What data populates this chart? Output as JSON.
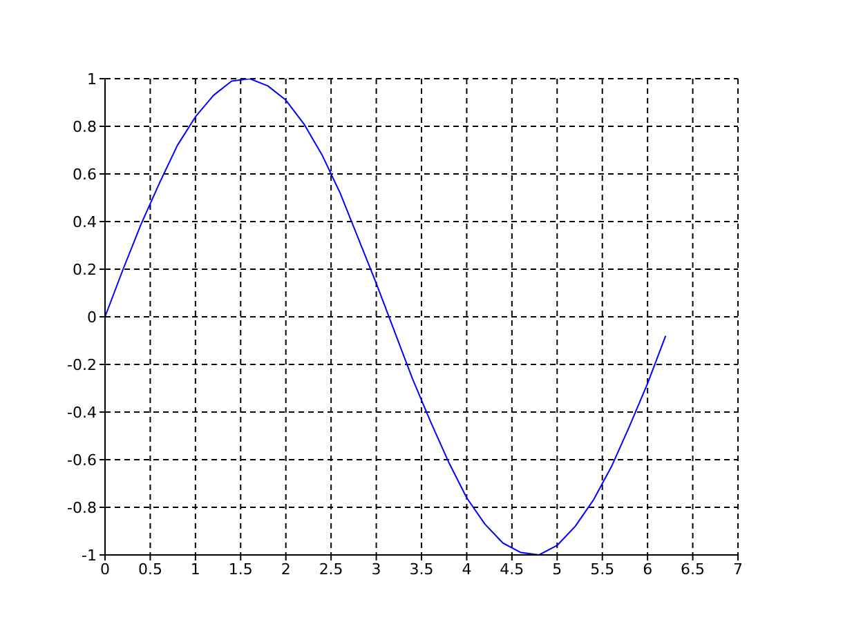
{
  "chart_data": {
    "type": "line",
    "x": [
      0,
      0.2,
      0.4,
      0.6,
      0.8,
      1.0,
      1.2,
      1.4,
      1.6,
      1.8,
      2.0,
      2.2,
      2.4,
      2.6,
      2.8,
      3.0,
      3.2,
      3.4,
      3.6,
      3.8,
      4.0,
      4.2,
      4.4,
      4.6,
      4.8,
      5.0,
      5.2,
      5.4,
      5.6,
      5.8,
      6.0,
      6.2
    ],
    "series": [
      {
        "color": "#0000ff",
        "values": [
          0,
          0.2,
          0.39,
          0.56,
          0.72,
          0.84,
          0.93,
          0.99,
          1.0,
          0.97,
          0.91,
          0.81,
          0.68,
          0.52,
          0.33,
          0.14,
          -0.06,
          -0.26,
          -0.44,
          -0.61,
          -0.76,
          -0.87,
          -0.95,
          -0.99,
          -1.0,
          -0.96,
          -0.88,
          -0.77,
          -0.63,
          -0.46,
          -0.28,
          -0.08
        ]
      }
    ],
    "xlim": [
      0,
      7
    ],
    "xticks": [
      0,
      0.5,
      1,
      1.5,
      2,
      2.5,
      3,
      3.5,
      4,
      4.5,
      5,
      5.5,
      6,
      6.5,
      7
    ],
    "ylim": [
      -1,
      1
    ],
    "yticks": [
      -1,
      -0.8,
      -0.6,
      -0.4,
      -0.2,
      0,
      0.2,
      0.4,
      0.6,
      0.8,
      1
    ],
    "grid": true,
    "marker": "none",
    "line_style": "solid"
  }
}
